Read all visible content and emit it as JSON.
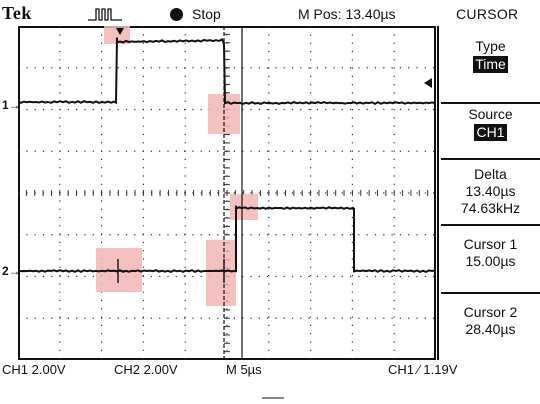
{
  "header": {
    "brand": "Tek",
    "trigger_icon": "trigger-edge-icon",
    "run_state": "Stop",
    "position_readout": "M Pos: 13.40µs",
    "menu_title": "CURSOR"
  },
  "sidebar": {
    "items": [
      {
        "label": "Type",
        "value": "Time"
      },
      {
        "label": "Source",
        "value": "CH1"
      },
      {
        "label": "Delta",
        "value": "13.40µs",
        "value2": "74.63kHz"
      },
      {
        "label": "Cursor 1",
        "value": "15.00µs"
      },
      {
        "label": "Cursor 2",
        "value": "28.40µs"
      }
    ]
  },
  "markers": {
    "ch1": "1→",
    "ch2": "2→"
  },
  "status": {
    "ch1_scale": "CH1  2.00V",
    "ch2_scale": "CH2  2.00V",
    "timebase": "M 5µs",
    "trigger": "CH1  ∕  1.19V"
  },
  "colors": {
    "trace": "#111111",
    "highlight": "#f3b5b5",
    "grid_dot": "#333333"
  }
}
